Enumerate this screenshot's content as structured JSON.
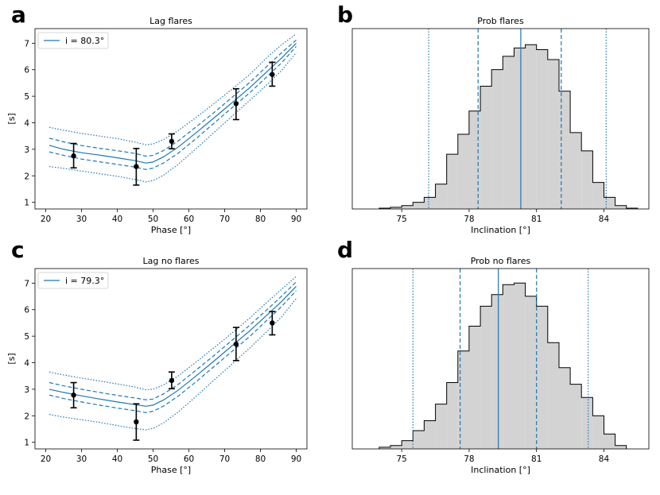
{
  "chart_data": [
    {
      "panel": "a",
      "type": "line",
      "title": "Lag flares",
      "xlabel": "Phase [°]",
      "ylabel": "[s]",
      "xlim": [
        17,
        93
      ],
      "ylim": [
        0.75,
        7.55
      ],
      "xticks": [
        20,
        30,
        40,
        50,
        60,
        70,
        80,
        90
      ],
      "yticks": [
        1,
        2,
        3,
        4,
        5,
        6,
        7
      ],
      "legend": {
        "label": "i = 80.3°",
        "position": "upper-left"
      },
      "x": [
        21,
        25,
        30,
        35,
        40,
        45,
        48,
        50,
        53,
        57,
        62,
        67,
        72,
        77,
        82,
        86,
        90
      ],
      "series": [
        {
          "name": "median",
          "style": "solid",
          "values": [
            3.15,
            3.0,
            2.87,
            2.78,
            2.68,
            2.57,
            2.48,
            2.52,
            2.72,
            3.08,
            3.62,
            4.18,
            4.75,
            5.32,
            5.95,
            6.45,
            7.0
          ]
        },
        {
          "name": "upper 1-sigma",
          "style": "dashed",
          "values": [
            3.42,
            3.28,
            3.14,
            3.04,
            2.95,
            2.84,
            2.74,
            2.77,
            2.96,
            3.31,
            3.84,
            4.38,
            4.95,
            5.52,
            6.15,
            6.65,
            7.12
          ]
        },
        {
          "name": "lower 1-sigma",
          "style": "dashed",
          "values": [
            2.9,
            2.77,
            2.63,
            2.53,
            2.43,
            2.33,
            2.24,
            2.29,
            2.49,
            2.85,
            3.4,
            3.98,
            4.56,
            5.13,
            5.76,
            6.27,
            6.88
          ]
        },
        {
          "name": "upper 2-sigma",
          "style": "dotted",
          "values": [
            3.83,
            3.72,
            3.6,
            3.5,
            3.4,
            3.27,
            3.17,
            3.2,
            3.37,
            3.7,
            4.2,
            4.72,
            5.26,
            5.82,
            6.48,
            6.95,
            7.35
          ]
        },
        {
          "name": "lower 2-sigma",
          "style": "dotted",
          "values": [
            2.35,
            2.28,
            2.18,
            2.08,
            1.98,
            1.86,
            1.77,
            1.82,
            2.03,
            2.43,
            3.02,
            3.63,
            4.24,
            4.84,
            5.46,
            5.98,
            6.65
          ]
        }
      ],
      "points": [
        {
          "x": 27.8,
          "y": 2.75,
          "ylo": 2.3,
          "yhi": 3.22
        },
        {
          "x": 45.3,
          "y": 2.35,
          "ylo": 1.65,
          "yhi": 3.03
        },
        {
          "x": 55.2,
          "y": 3.3,
          "ylo": 3.02,
          "yhi": 3.58
        },
        {
          "x": 73.2,
          "y": 4.72,
          "ylo": 4.12,
          "yhi": 5.28
        },
        {
          "x": 83.3,
          "y": 5.82,
          "ylo": 5.38,
          "yhi": 6.28
        }
      ]
    },
    {
      "panel": "b",
      "type": "histogram",
      "title": "Prob flares",
      "xlabel": "Inclination [°]",
      "xlim": [
        72.8,
        86.0
      ],
      "ylim": [
        0,
        1.0
      ],
      "xticks": [
        75,
        78,
        81,
        84
      ],
      "bin_edges": [
        74.0,
        74.5,
        75.0,
        75.5,
        76.0,
        76.5,
        77.0,
        77.5,
        78.0,
        78.5,
        79.0,
        79.5,
        80.0,
        80.5,
        81.0,
        81.5,
        82.0,
        82.5,
        83.0,
        83.5,
        84.0,
        84.5,
        85.0,
        85.5
      ],
      "counts": [
        0.005,
        0.01,
        0.02,
        0.04,
        0.07,
        0.15,
        0.33,
        0.45,
        0.59,
        0.74,
        0.84,
        0.92,
        0.97,
        0.99,
        0.96,
        0.9,
        0.71,
        0.46,
        0.35,
        0.16,
        0.07,
        0.02,
        0.005
      ],
      "vlines": [
        {
          "x": 80.3,
          "style": "solid"
        },
        {
          "x": 78.4,
          "style": "dashed"
        },
        {
          "x": 82.1,
          "style": "dashed"
        },
        {
          "x": 76.2,
          "style": "dotted"
        },
        {
          "x": 84.1,
          "style": "dotted"
        }
      ]
    },
    {
      "panel": "c",
      "type": "line",
      "title": "Lag no flares",
      "xlabel": "Phase [°]",
      "ylabel": "[s]",
      "xlim": [
        17,
        93
      ],
      "ylim": [
        0.75,
        7.55
      ],
      "xticks": [
        20,
        30,
        40,
        50,
        60,
        70,
        80,
        90
      ],
      "yticks": [
        1,
        2,
        3,
        4,
        5,
        6,
        7
      ],
      "legend": {
        "label": "i = 79.3°",
        "position": "upper-left"
      },
      "x": [
        21,
        25,
        30,
        35,
        40,
        45,
        48,
        50,
        53,
        57,
        62,
        67,
        72,
        77,
        82,
        86,
        90
      ],
      "series": [
        {
          "name": "median",
          "style": "solid",
          "values": [
            3.0,
            2.88,
            2.75,
            2.63,
            2.52,
            2.42,
            2.36,
            2.4,
            2.6,
            2.96,
            3.5,
            4.06,
            4.63,
            5.2,
            5.82,
            6.32,
            6.88
          ]
        },
        {
          "name": "upper 1-sigma",
          "style": "dashed",
          "values": [
            3.25,
            3.13,
            3.0,
            2.88,
            2.77,
            2.67,
            2.6,
            2.63,
            2.83,
            3.18,
            3.72,
            4.27,
            4.84,
            5.41,
            6.02,
            6.52,
            7.05
          ]
        },
        {
          "name": "lower 1-sigma",
          "style": "dashed",
          "values": [
            2.78,
            2.65,
            2.52,
            2.4,
            2.29,
            2.19,
            2.12,
            2.17,
            2.37,
            2.74,
            3.28,
            3.85,
            4.42,
            4.99,
            5.62,
            6.13,
            6.72
          ]
        },
        {
          "name": "upper 2-sigma",
          "style": "dotted",
          "values": [
            3.65,
            3.54,
            3.42,
            3.31,
            3.2,
            3.08,
            2.98,
            3.0,
            3.17,
            3.5,
            4.02,
            4.56,
            5.11,
            5.68,
            6.3,
            6.78,
            7.25
          ]
        },
        {
          "name": "lower 2-sigma",
          "style": "dotted",
          "values": [
            2.05,
            1.95,
            1.85,
            1.75,
            1.63,
            1.52,
            1.47,
            1.52,
            1.74,
            2.14,
            2.73,
            3.34,
            3.94,
            4.55,
            5.2,
            5.74,
            6.42
          ]
        }
      ],
      "points": [
        {
          "x": 27.8,
          "y": 2.78,
          "ylo": 2.3,
          "yhi": 3.25
        },
        {
          "x": 45.3,
          "y": 1.77,
          "ylo": 1.08,
          "yhi": 2.45
        },
        {
          "x": 55.2,
          "y": 3.33,
          "ylo": 3.02,
          "yhi": 3.65
        },
        {
          "x": 73.2,
          "y": 4.7,
          "ylo": 4.08,
          "yhi": 5.33
        },
        {
          "x": 83.3,
          "y": 5.5,
          "ylo": 5.05,
          "yhi": 5.93
        }
      ]
    },
    {
      "panel": "d",
      "type": "histogram",
      "title": "Prob no flares",
      "xlabel": "Inclination [°]",
      "xlim": [
        72.8,
        86.0
      ],
      "ylim": [
        0,
        1.0
      ],
      "xticks": [
        75,
        78,
        81,
        84
      ],
      "bin_edges": [
        74.0,
        74.5,
        75.0,
        75.5,
        76.0,
        76.5,
        77.0,
        77.5,
        78.0,
        78.5,
        79.0,
        79.5,
        80.0,
        80.5,
        81.0,
        81.5,
        82.0,
        82.5,
        83.0,
        83.5,
        84.0,
        84.5,
        85.0
      ],
      "counts": [
        0.01,
        0.02,
        0.05,
        0.11,
        0.17,
        0.27,
        0.4,
        0.59,
        0.74,
        0.86,
        0.93,
        0.99,
        1.0,
        0.92,
        0.86,
        0.64,
        0.49,
        0.39,
        0.31,
        0.2,
        0.09,
        0.02
      ],
      "vlines": [
        {
          "x": 79.3,
          "style": "solid"
        },
        {
          "x": 77.6,
          "style": "dashed"
        },
        {
          "x": 81.0,
          "style": "dashed"
        },
        {
          "x": 75.5,
          "style": "dotted"
        },
        {
          "x": 83.3,
          "style": "dotted"
        }
      ]
    }
  ],
  "panel_labels": [
    "a",
    "b",
    "c",
    "d"
  ],
  "colors": {
    "line": "#1f77b4",
    "hist_fill": "#d3d3d3",
    "edge": "#000000",
    "points": "#000000"
  }
}
